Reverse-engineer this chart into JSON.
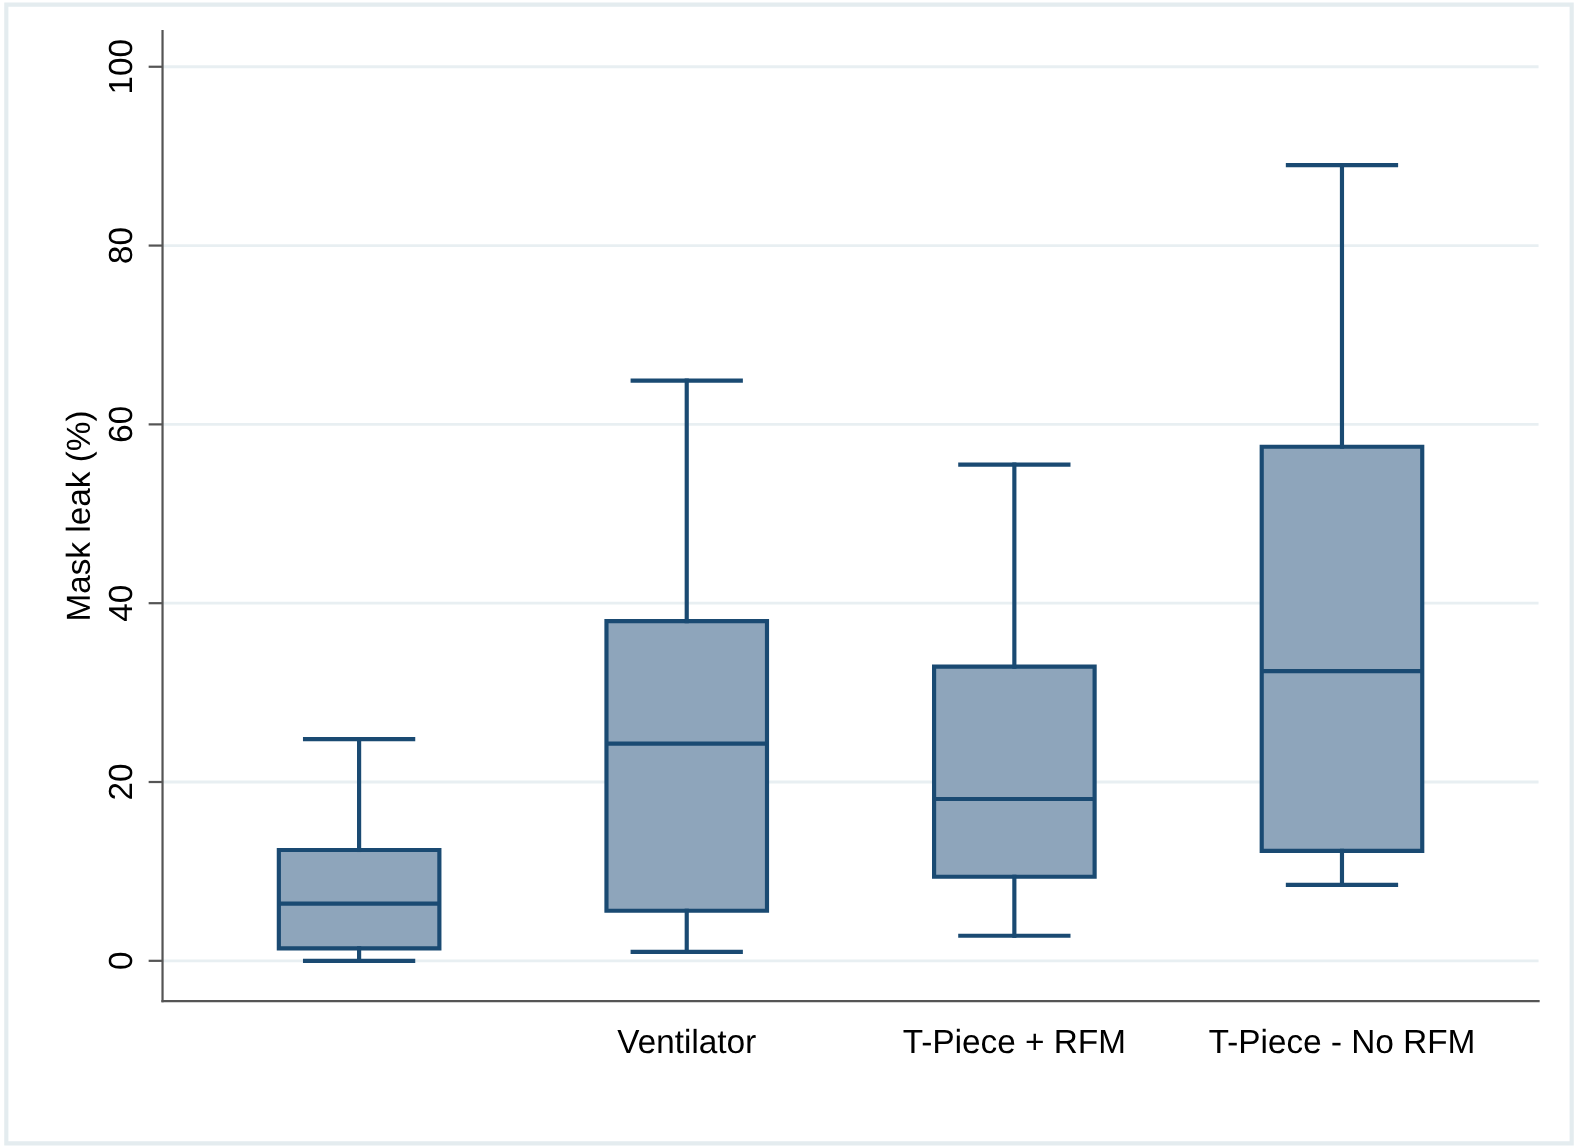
{
  "chart_data": {
    "type": "box",
    "ylabel": "Mask leak (%)",
    "categories": [
      null,
      "Ventilator",
      "T-Piece + RFM",
      "T-Piece - No RFM"
    ],
    "boxes": [
      {
        "low": 0,
        "q1": 1.4,
        "median": 6.4,
        "q3": 12.4,
        "high": 24.8
      },
      {
        "low": 1.0,
        "q1": 5.6,
        "median": 24.3,
        "q3": 38.0,
        "high": 64.9
      },
      {
        "low": 2.8,
        "q1": 9.4,
        "median": 18.1,
        "q3": 32.9,
        "high": 55.5
      },
      {
        "low": 8.5,
        "q1": 12.3,
        "median": 32.4,
        "q3": 57.5,
        "high": 89.0
      }
    ],
    "color": "#8ea5bb",
    "ylim": [
      -4.5,
      104
    ],
    "yticks": [
      0,
      20,
      40,
      60,
      80,
      100
    ],
    "grid": "y"
  }
}
